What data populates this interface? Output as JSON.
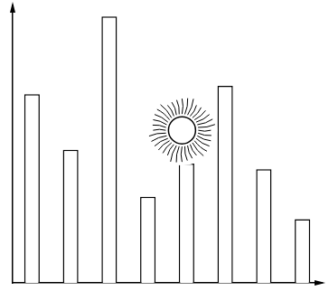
{
  "chart_data": {
    "type": "bar",
    "categories": [
      null,
      null,
      null,
      null,
      null,
      null,
      null,
      null
    ],
    "values": [
      68,
      48,
      96,
      31,
      43,
      71,
      41,
      23
    ],
    "color": "#ffffff",
    "ylim": [
      0,
      100
    ],
    "grid": false,
    "tick_labels": false
  }
}
